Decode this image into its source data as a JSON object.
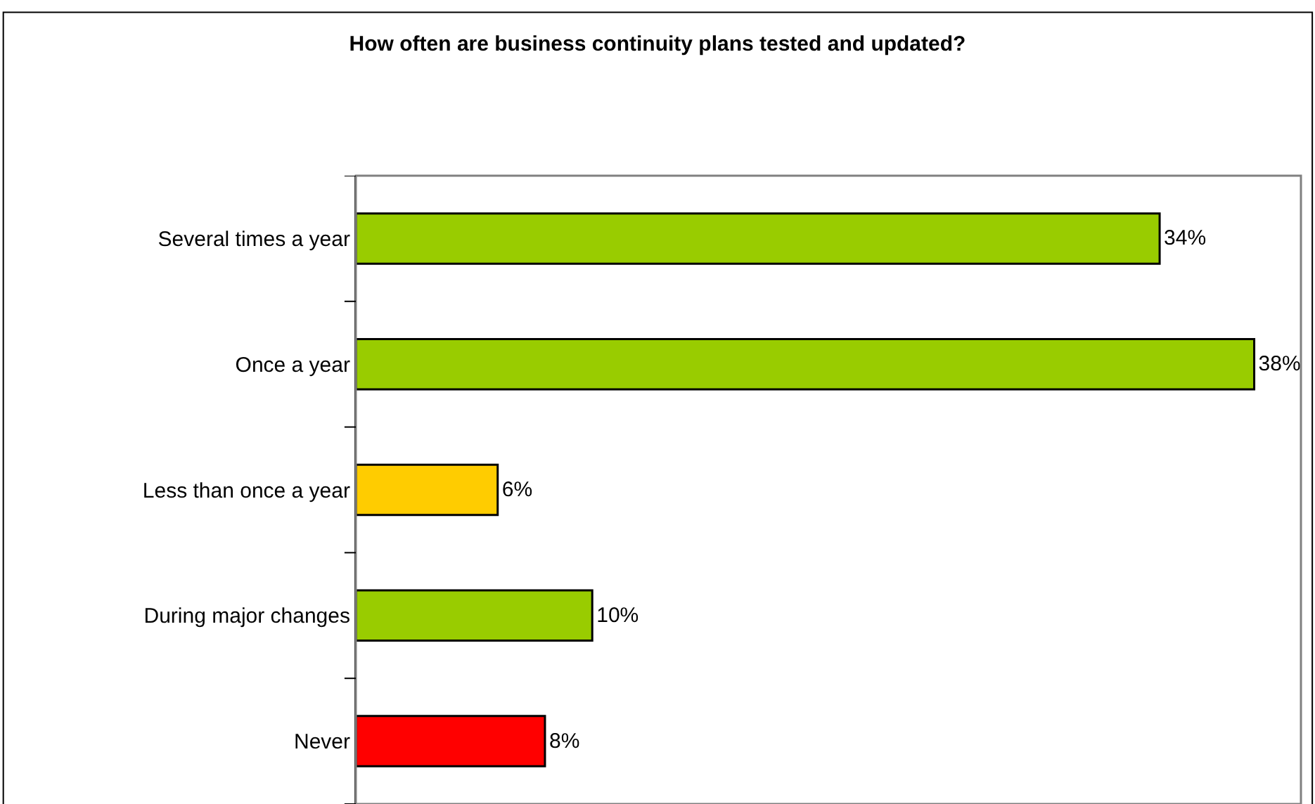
{
  "chart_data": {
    "type": "bar",
    "orientation": "horizontal",
    "title": "How often are business continuity plans tested and updated?",
    "categories": [
      "Several times a year",
      "Once a year",
      "Less than once a year",
      "During major changes",
      "Never"
    ],
    "values": [
      34,
      38,
      6,
      10,
      8
    ],
    "colors": [
      "#99cc00",
      "#99cc00",
      "#ffcc00",
      "#99cc00",
      "#ff0000"
    ],
    "value_labels": [
      "34%",
      "38%",
      "6%",
      "10%",
      "8%"
    ]
  }
}
